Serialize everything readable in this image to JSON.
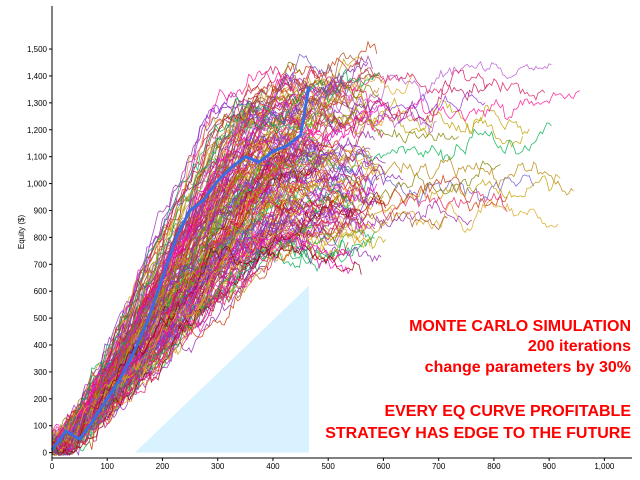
{
  "chart_data": {
    "type": "line",
    "title": "",
    "xlabel": "",
    "ylabel": "Equity ($)",
    "xlim": [
      0,
      1050
    ],
    "ylim": [
      -20,
      1660
    ],
    "x_ticks": [
      "0",
      "100",
      "200",
      "300",
      "400",
      "500",
      "600",
      "700",
      "800",
      "900",
      "1,000"
    ],
    "y_ticks": [
      "0",
      "100",
      "200",
      "300",
      "400",
      "500",
      "600",
      "700",
      "800",
      "900",
      "1,000",
      "1,100",
      "1,200",
      "1,300",
      "1,400",
      "1,500"
    ],
    "grid": false,
    "iterations": 200,
    "colors": {
      "original": "#3a6ee0",
      "original_fill": "#d8f2ff",
      "annotation": "#ff0000",
      "palette": [
        "#d81b60",
        "#c2185b",
        "#b8860b",
        "#a0522d",
        "#8e24aa",
        "#e91e63",
        "#cc3300",
        "#9c27b0",
        "#b22222",
        "#ff00cc",
        "#c0a000",
        "#6a5acd",
        "#00b050",
        "#8a2be2",
        "#cd853f",
        "#808000",
        "#ba55d3",
        "#ff1493",
        "#8b0000",
        "#daa520"
      ]
    },
    "series": [
      {
        "x": [
          0,
          25,
          50,
          75,
          100,
          125,
          150,
          175,
          200,
          225,
          250,
          275,
          300,
          325,
          350,
          375,
          400,
          425,
          450,
          465
        ],
        "y": [
          10,
          80,
          50,
          120,
          200,
          280,
          380,
          500,
          650,
          800,
          900,
          940,
          1010,
          1060,
          1100,
          1080,
          1120,
          1140,
          1180,
          1360
        ]
      }
    ],
    "annotations": [
      "MONTE CARLO SIMULATION",
      "200 iterations",
      "change parameters by 30%",
      "EVERY EQ CURVE PROFITABLE",
      "STRATEGY HAS EDGE TO THE FUTURE"
    ]
  }
}
